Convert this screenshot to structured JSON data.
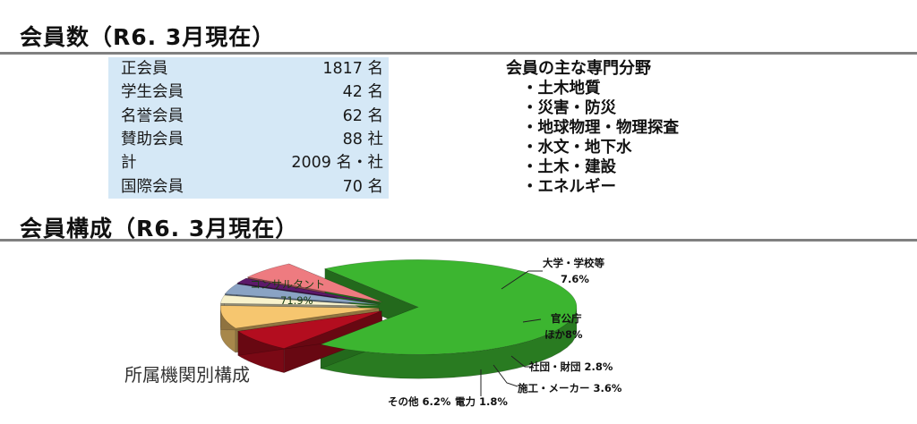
{
  "section1": {
    "title": "会員数（R6. 3月現在）"
  },
  "members": [
    {
      "label": "正会員",
      "value": "1817 名"
    },
    {
      "label": "学生会員",
      "value": "42 名"
    },
    {
      "label": "名誉会員",
      "value": "62 名"
    },
    {
      "label": "賛助会員",
      "value": "88 社"
    },
    {
      "label": "計",
      "value": "2009 名・社"
    },
    {
      "label": "国際会員",
      "value": "70 名"
    }
  ],
  "fields": {
    "title": "会員の主な専門分野",
    "items": [
      "・土木地質",
      "・災害・防災",
      "・地球物理・物理探査",
      "・水文・地下水",
      "・土木・建設",
      "・エネルギー"
    ]
  },
  "section2": {
    "title": "会員構成（R6. 3月現在）"
  },
  "chart_data": {
    "type": "pie",
    "title": "所属機関別構成",
    "three_d": true,
    "slices": [
      {
        "label": "コンサルタント",
        "value": 71.9,
        "value_label": "71.9%",
        "color": "#3cb530"
      },
      {
        "label": "大学・学校等",
        "value": 7.6,
        "value_label": "7.6%",
        "color": "#b30d1f"
      },
      {
        "label": "官公庁ほか",
        "value": 8,
        "value_label": "8%",
        "color": "#f6c66f"
      },
      {
        "label": "社団・財団",
        "value": 2.8,
        "value_label": "2.8%",
        "color": "#f8f2cc"
      },
      {
        "label": "施工・メーカー",
        "value": 3.6,
        "value_label": "3.6%",
        "color": "#8aa3c4"
      },
      {
        "label": "電力",
        "value": 1.8,
        "value_label": "1.8%",
        "color": "#5c1a6a"
      },
      {
        "label": "その他",
        "value": 6.2,
        "value_label": "6.2%",
        "color": "#ee7b80"
      }
    ],
    "labels": {
      "consultant_name": "コンサルタント",
      "consultant_pct": "71.9%",
      "univ_name": "大学・学校等",
      "univ_pct": "7.6%",
      "gov_line1": "官公庁",
      "gov_line2": "ほか8%",
      "dantai": "社団・財団 2.8%",
      "sekou": "施工・メーカー 3.6%",
      "denryoku": "電力 1.8%",
      "other": "その他 6.2%"
    }
  }
}
